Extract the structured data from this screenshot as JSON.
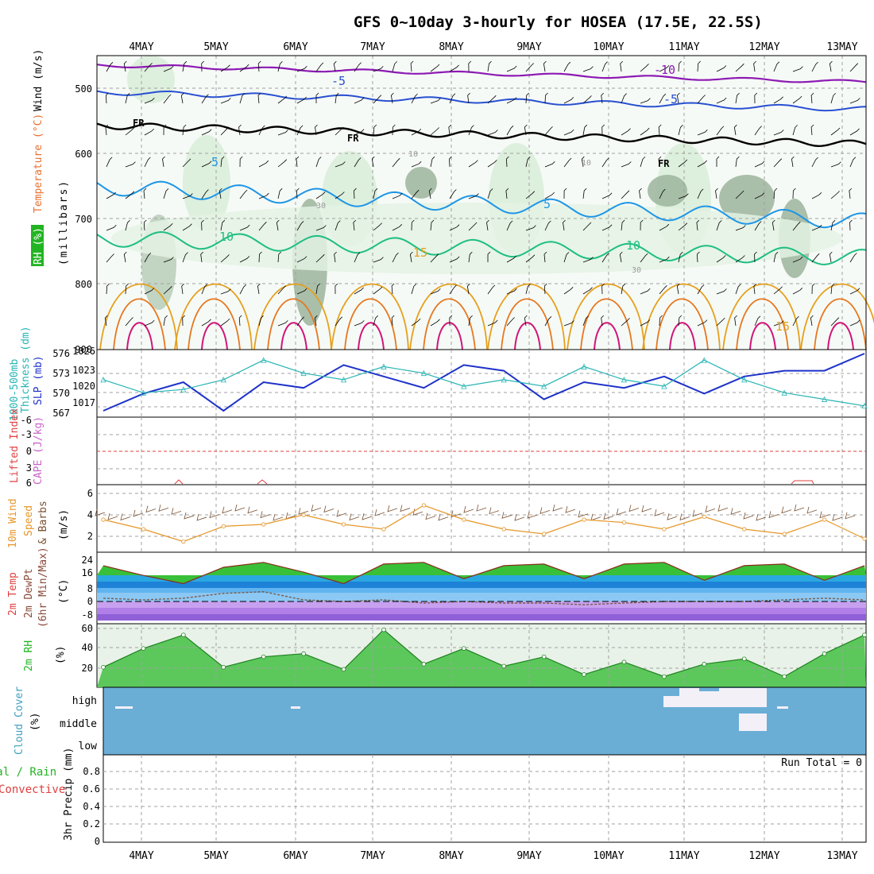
{
  "title": "GFS 0~10day 3-hourly for HOSEA (17.5E, 22.5S)",
  "date_labels": [
    "4MAY",
    "5MAY",
    "6MAY",
    "7MAY",
    "8MAY",
    "9MAY",
    "10MAY",
    "11MAY",
    "12MAY",
    "13MAY"
  ],
  "colors": {
    "temp_neg10": "#8c1ab4",
    "temp_neg5": "#2850d2",
    "freezing": "#000000",
    "temp_5": "#1e96e6",
    "temp_10": "#1ebe82",
    "temp_15": "#e6a01e",
    "temp_20": "#e67820",
    "temp_25": "#d21478",
    "rh_light": "#d8ecd8",
    "rh_dark": "#9cb49c",
    "thickness": "#28b4b4",
    "slp": "#1e32c8",
    "lifted": "#e04040",
    "wind": "#e69628",
    "barb": "#7a5030",
    "rh2m": "#3cb43c",
    "cloud": "#6aaed6",
    "cloud_clear": "#f4f0f8"
  },
  "panels": {
    "upper": {
      "ylabel_wind": "Wind (m/s)",
      "ylabel_temp": "Temperature (°C)",
      "ylabel_rh": "RH (%)",
      "ylabel_mb": "(millibars)",
      "y_ticks": [
        "500",
        "600",
        "700",
        "800",
        "900"
      ],
      "contour_labels": [
        "-10",
        "-5",
        "-5",
        "FR",
        "FR",
        "FR",
        "5",
        "5",
        "10",
        "10",
        "15",
        "15",
        "10",
        "10",
        "30",
        "30"
      ]
    },
    "thickness": {
      "ylabel_a": "1000-500mb",
      "ylabel_b": "Thickness (dm)",
      "ylabel_c": "SLP (mb)",
      "left_ticks": [
        "576",
        "573",
        "570",
        "567"
      ],
      "right_ticks": [
        "1026",
        "1023",
        "1020",
        "1017"
      ]
    },
    "lifted": {
      "ylabel_a": "Lifted Index",
      "ylabel_b": "CAPE (J/kg)",
      "ticks": [
        "-6",
        "-3",
        "0",
        "3",
        "6"
      ]
    },
    "wind10": {
      "ylabel_a": "10m Wind",
      "ylabel_b": "Speed",
      "ylabel_c": "& Barbs",
      "ylabel_d": "(m/s)",
      "ticks": [
        "6",
        "4",
        "2"
      ]
    },
    "temp2m": {
      "ylabel_a": "2m Temp",
      "ylabel_b": "2m DewPt",
      "ylabel_c": "(6hr Min/Max)",
      "ylabel_d": "(°C)",
      "ticks": [
        "24",
        "16",
        "8",
        "0",
        "-8"
      ]
    },
    "rh2m": {
      "ylabel_a": "2m RH",
      "ylabel_b": "(%)",
      "ticks": [
        "60",
        "40",
        "20"
      ]
    },
    "cloud": {
      "ylabel_a": "Cloud Cover",
      "ylabel_b": "(%)",
      "levels": [
        "high",
        "middle",
        "low"
      ]
    },
    "precip": {
      "ylabel_a": "Total / Rain",
      "ylabel_b": "Convective",
      "ylabel_c": "3hr Precip (mm)",
      "ticks": [
        "0.8",
        "0.6",
        "0.4",
        "0.2",
        "0"
      ],
      "run_total": "Run Total = 0"
    }
  },
  "chart_data": {
    "type": "line",
    "x_dates": [
      "4MAY",
      "5MAY",
      "6MAY",
      "7MAY",
      "8MAY",
      "9MAY",
      "10MAY",
      "11MAY",
      "12MAY",
      "13MAY"
    ],
    "thickness_dm": [
      572,
      570,
      570.5,
      572,
      575,
      573,
      572,
      574,
      573,
      571,
      572,
      571,
      574,
      572,
      571,
      575,
      572,
      570,
      569,
      568
    ],
    "slp_mb": [
      1016,
      1019,
      1021,
      1016,
      1021,
      1020,
      1024,
      1022,
      1020,
      1024,
      1023,
      1018,
      1021,
      1020,
      1022,
      1019,
      1022,
      1023,
      1023,
      1026
    ],
    "wind10_ms": [
      3.5,
      2.5,
      1.2,
      2.8,
      3,
      4,
      3,
      2.5,
      5,
      3.5,
      2.5,
      2,
      3.5,
      3.2,
      2.5,
      3.8,
      2.5,
      2,
      3.5,
      1.5
    ],
    "temp2m_c": [
      22,
      16,
      11,
      21,
      24,
      18,
      11,
      23,
      24,
      14,
      22,
      23,
      14,
      23,
      24,
      13,
      22,
      23,
      13,
      22
    ],
    "dewpt2m_c": [
      2,
      1,
      2,
      5,
      6,
      1,
      0,
      1,
      -1,
      0,
      -1,
      -1,
      -2,
      -1,
      0,
      0,
      0,
      1,
      2,
      1
    ],
    "rh2m_pct": [
      27,
      45,
      58,
      27,
      37,
      40,
      25,
      63,
      30,
      45,
      28,
      37,
      20,
      32,
      18,
      30,
      35,
      18,
      40,
      58
    ],
    "precip_mm": [
      0,
      0,
      0,
      0,
      0,
      0,
      0,
      0,
      0,
      0,
      0,
      0,
      0,
      0,
      0,
      0,
      0,
      0,
      0,
      0
    ]
  }
}
